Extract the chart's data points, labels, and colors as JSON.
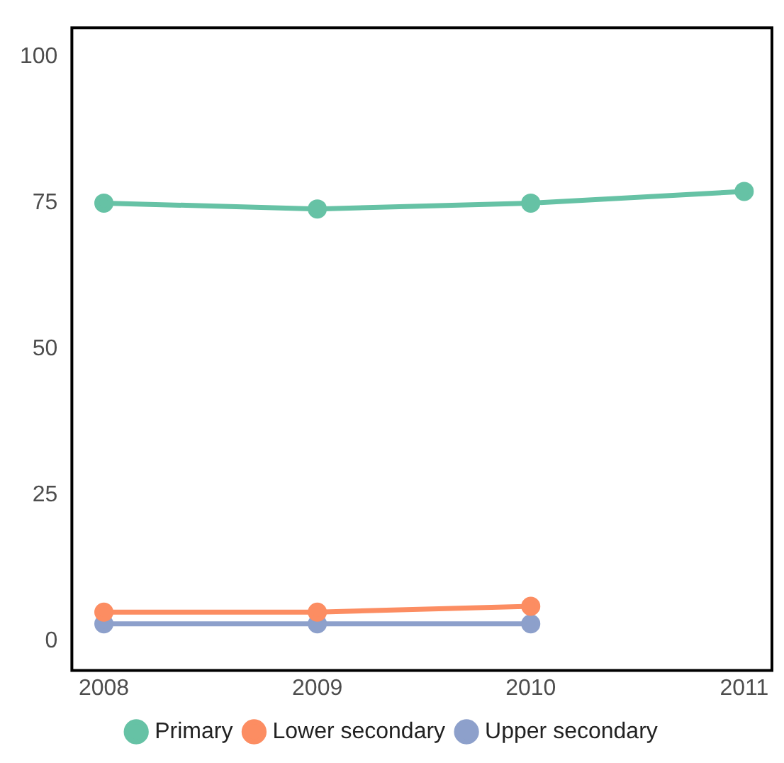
{
  "chart_data": {
    "type": "line",
    "x": [
      2008,
      2009,
      2010,
      2011
    ],
    "series": [
      {
        "name": "Primary",
        "color": "#66c2a5",
        "values": [
          75,
          74,
          75,
          77
        ]
      },
      {
        "name": "Lower secondary",
        "color": "#fc8d62",
        "values": [
          5,
          5,
          6,
          null
        ]
      },
      {
        "name": "Upper secondary",
        "color": "#8da0cb",
        "values": [
          3,
          3,
          3,
          null
        ]
      }
    ],
    "xlim": [
      2007.85,
      2011.13
    ],
    "xticks": [
      2008,
      2009,
      2010,
      2011
    ],
    "ylim": [
      -5,
      105
    ],
    "yticks": [
      0,
      25,
      50,
      75,
      100
    ],
    "grid": false,
    "legend": "bottom",
    "marker": "circle",
    "line_style": "solid"
  }
}
